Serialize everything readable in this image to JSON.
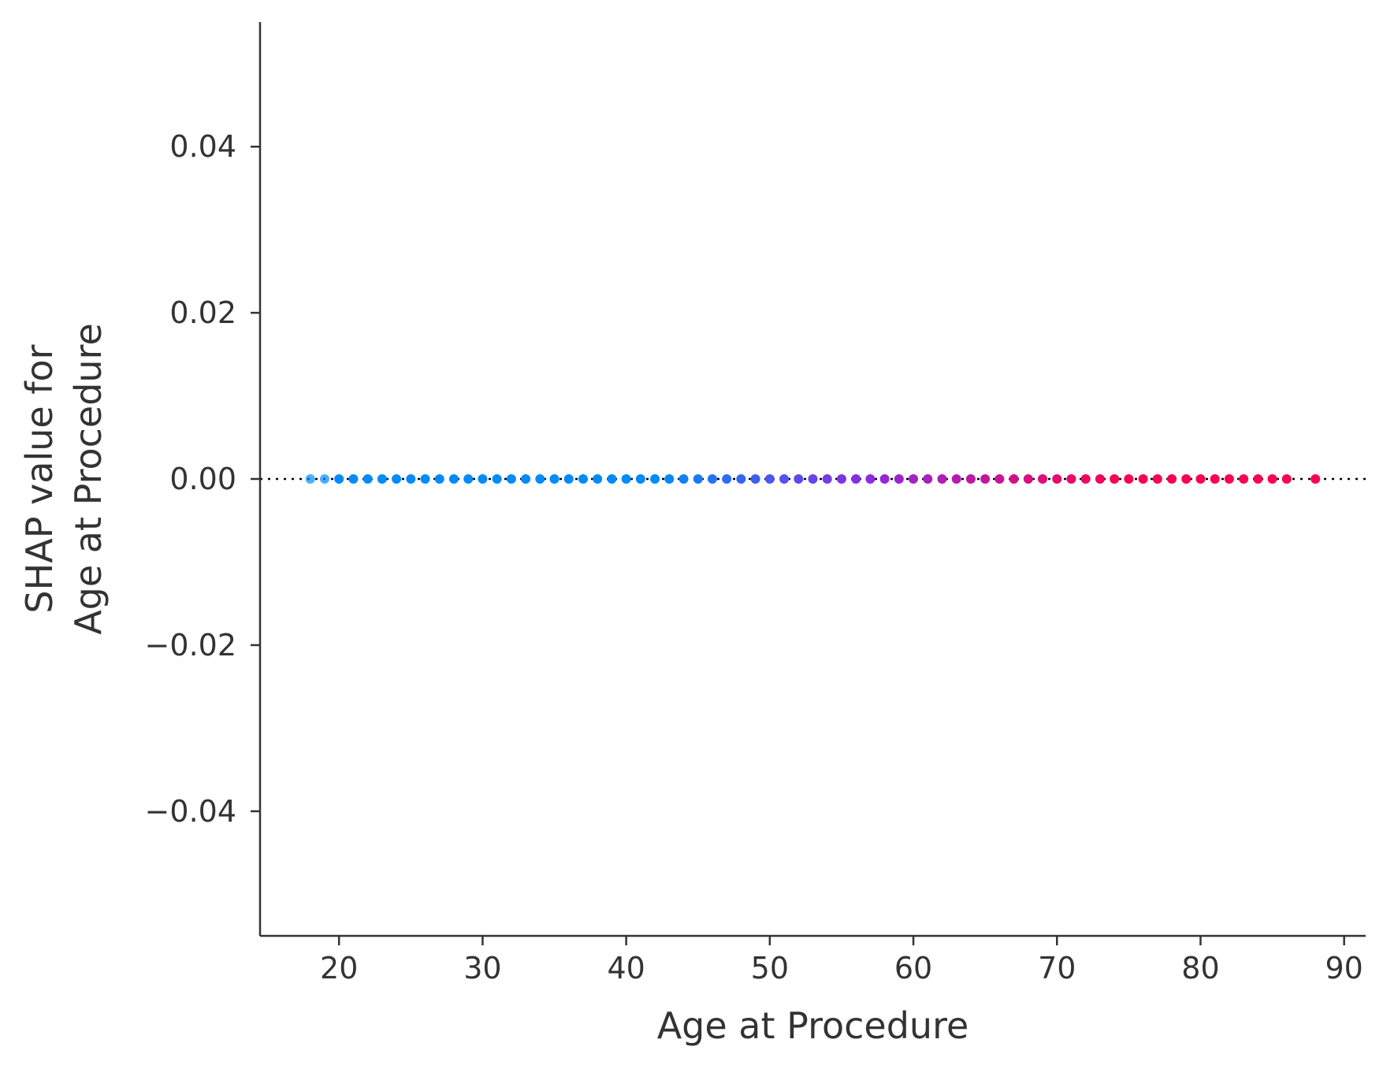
{
  "chart_data": {
    "type": "scatter",
    "title": "",
    "xlabel": "Age at Procedure",
    "ylabel": [
      "SHAP value for",
      "Age at Procedure"
    ],
    "xlim": [
      14.5,
      91.5
    ],
    "ylim": [
      -0.055,
      0.055
    ],
    "xticks": [
      20,
      30,
      40,
      50,
      60,
      70,
      80,
      90
    ],
    "xtick_labels": [
      "20",
      "30",
      "40",
      "50",
      "60",
      "70",
      "80",
      "90"
    ],
    "yticks": [
      0.04,
      0.02,
      0.0,
      -0.02,
      -0.04
    ],
    "ytick_labels": [
      "0.04",
      "0.02",
      "0.00",
      "−0.02",
      "−0.04"
    ],
    "reference_line": {
      "y": 0.0,
      "style": "dotted",
      "color": "#000000"
    },
    "grid": false,
    "spines": [
      "left",
      "bottom"
    ],
    "color_scale": {
      "low": "#008bfb",
      "mid": "#8a2be2",
      "high": "#ff0051",
      "meaning": "feature value (low = blue, high = red)"
    },
    "x": [
      18,
      19,
      20,
      21,
      22,
      23,
      24,
      25,
      26,
      27,
      28,
      29,
      30,
      31,
      32,
      33,
      34,
      35,
      36,
      37,
      38,
      39,
      40,
      41,
      42,
      43,
      44,
      45,
      46,
      47,
      48,
      49,
      50,
      51,
      52,
      53,
      54,
      55,
      56,
      57,
      58,
      59,
      60,
      61,
      62,
      63,
      64,
      65,
      66,
      67,
      68,
      69,
      70,
      71,
      72,
      73,
      74,
      75,
      76,
      77,
      78,
      79,
      80,
      81,
      82,
      83,
      84,
      85,
      86,
      88
    ],
    "y": [
      0,
      0,
      0,
      0,
      0,
      0,
      0,
      0,
      0,
      0,
      0,
      0,
      0,
      0,
      0,
      0,
      0,
      0,
      0,
      0,
      0,
      0,
      0,
      0,
      0,
      0,
      0,
      0,
      0,
      0,
      0,
      0,
      0,
      0,
      0,
      0,
      0,
      0,
      0,
      0,
      0,
      0,
      0,
      0,
      0,
      0,
      0,
      0,
      0,
      0,
      0,
      0,
      0,
      0,
      0,
      0,
      0,
      0,
      0,
      0,
      0,
      0,
      0,
      0,
      0,
      0,
      0,
      0,
      0,
      0
    ]
  }
}
